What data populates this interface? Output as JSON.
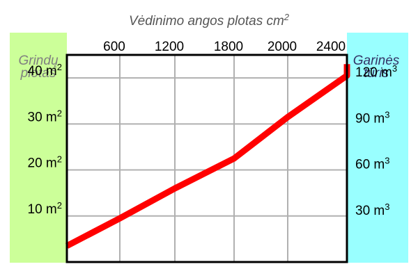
{
  "chart_data": {
    "type": "line",
    "title": "Vėdinimo angos plotas cm²",
    "x_axis": {
      "label": "Vėdinimo angos plotas cm²",
      "position": "top",
      "ticks": [
        600,
        1200,
        1800,
        2000,
        2400
      ]
    },
    "y_left": {
      "label_line1": "Grindų",
      "label_line2": "plotas",
      "unit": "m²",
      "ticks": [
        {
          "value": 10,
          "text": "10 m²"
        },
        {
          "value": 20,
          "text": "20 m²"
        },
        {
          "value": 30,
          "text": "30 m²"
        },
        {
          "value": 40,
          "text": "40 m²"
        }
      ],
      "ylim": [
        0,
        45
      ]
    },
    "y_right": {
      "label_line1": "Garinės",
      "label_line2": "tūris",
      "unit": "m³",
      "ticks": [
        {
          "value": 30,
          "text": "30 m³"
        },
        {
          "value": 60,
          "text": "60 m³"
        },
        {
          "value": 90,
          "text": "90 m³"
        },
        {
          "value": 120,
          "text": "120 m³"
        }
      ],
      "ylim": [
        0,
        135
      ]
    },
    "grid": true,
    "series": [
      {
        "color": "#ff0000",
        "points": [
          {
            "tick_index": -1,
            "y": 3.5
          },
          {
            "tick_index": 0,
            "y": 9.5
          },
          {
            "tick_index": 1,
            "y": 16
          },
          {
            "tick_index": 2,
            "y": 22.5
          },
          {
            "tick_index": 3,
            "y": 31.5
          },
          {
            "tick_index": 4,
            "y": 40.5
          },
          {
            "tick_index": 5,
            "y": 43
          }
        ]
      }
    ],
    "colors": {
      "left_band": "#ccff99",
      "right_band": "#99ffff",
      "left_label": "#808080",
      "right_label": "#333366",
      "grid": "#b0b0b0",
      "frame": "#000000",
      "title": "#555555"
    }
  }
}
